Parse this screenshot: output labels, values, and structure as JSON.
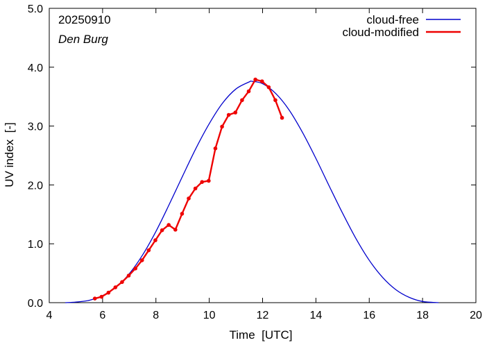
{
  "chart_data": {
    "type": "line",
    "date_label": "20250910",
    "location_label": "Den Burg",
    "xlabel": "Time  [UTC]",
    "ylabel": "UV index  [-]",
    "xlim": [
      4,
      20
    ],
    "ylim": [
      0,
      5
    ],
    "x_ticks": [
      4,
      6,
      8,
      10,
      12,
      14,
      16,
      18,
      20
    ],
    "x_tick_labels": [
      "4",
      "6",
      "8",
      "10",
      "12",
      "14",
      "16",
      "18",
      "20"
    ],
    "y_ticks": [
      0,
      1,
      2,
      3,
      4,
      5
    ],
    "y_tick_labels": [
      "0.0",
      "1.0",
      "2.0",
      "3.0",
      "4.0",
      "5.0"
    ],
    "grid": false,
    "legend_position": "top-right",
    "series": [
      {
        "name": "cloud-free",
        "color": "#0000cc",
        "markers": false,
        "x": [
          4.6,
          5.0,
          5.5,
          6.0,
          6.5,
          7.0,
          7.5,
          8.0,
          8.5,
          9.0,
          9.5,
          10.0,
          10.5,
          11.0,
          11.5,
          11.6,
          12.0,
          12.5,
          13.0,
          13.5,
          14.0,
          14.5,
          15.0,
          15.5,
          16.0,
          16.5,
          17.0,
          17.5,
          18.0,
          18.6
        ],
        "y": [
          0.0,
          0.01,
          0.04,
          0.12,
          0.26,
          0.49,
          0.81,
          1.21,
          1.67,
          2.15,
          2.62,
          3.04,
          3.39,
          3.63,
          3.75,
          3.76,
          3.72,
          3.55,
          3.27,
          2.89,
          2.45,
          1.98,
          1.52,
          1.09,
          0.72,
          0.43,
          0.22,
          0.09,
          0.02,
          0.0
        ]
      },
      {
        "name": "cloud-modified",
        "color": "#ee0000",
        "markers": true,
        "x": [
          5.71,
          5.96,
          6.22,
          6.48,
          6.73,
          6.98,
          7.23,
          7.48,
          7.73,
          7.98,
          8.23,
          8.48,
          8.73,
          8.98,
          9.23,
          9.48,
          9.73,
          9.98,
          10.23,
          10.48,
          10.73,
          10.98,
          11.23,
          11.48,
          11.73,
          11.98,
          12.23,
          12.48,
          12.73
        ],
        "y": [
          0.07,
          0.1,
          0.17,
          0.26,
          0.35,
          0.46,
          0.58,
          0.72,
          0.89,
          1.06,
          1.23,
          1.32,
          1.24,
          1.51,
          1.77,
          1.94,
          2.05,
          2.07,
          2.62,
          2.99,
          3.19,
          3.23,
          3.44,
          3.59,
          3.79,
          3.76,
          3.66,
          3.44,
          3.14
        ]
      }
    ]
  }
}
